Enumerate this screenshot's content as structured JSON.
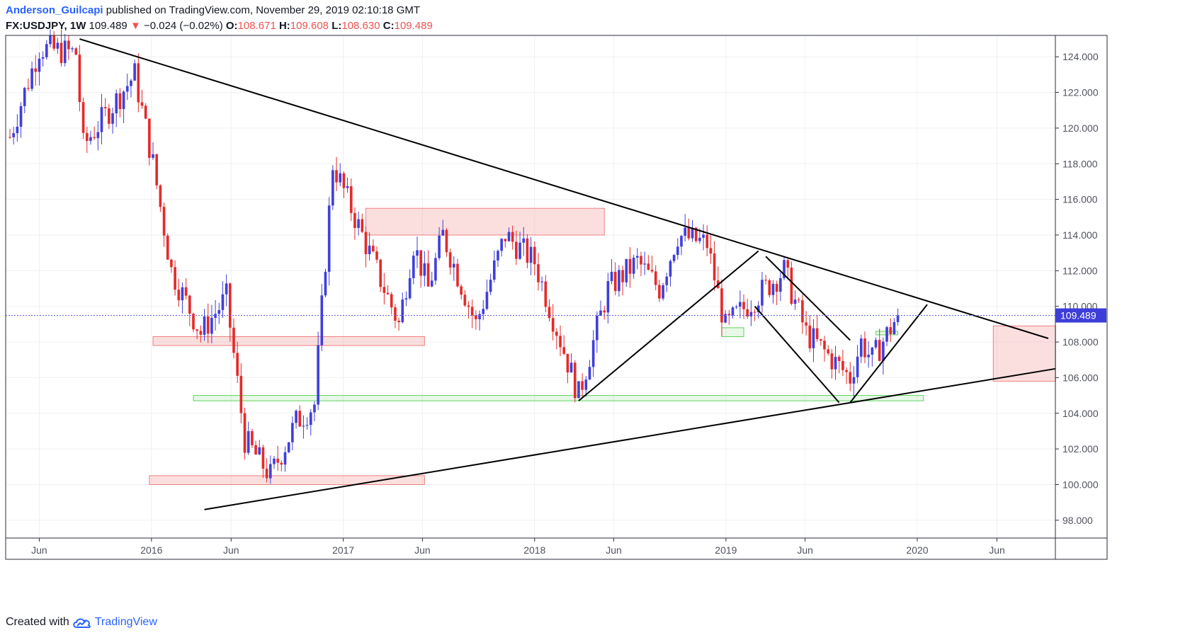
{
  "header": {
    "author": "Anderson_Guilcapi",
    "published": " published on TradingView.com, November 29, 2019 02:10:18 GMT",
    "symbol": "FX:USDJPY, 1W",
    "last": "109.489",
    "down_arrow": "▼",
    "change": "−0.024 (−0.02%)",
    "o_label": "O:",
    "o_value": "108.671",
    "h_label": "H:",
    "h_value": "109.608",
    "l_label": "L:",
    "l_value": "108.630",
    "c_label": "C:",
    "c_value": "109.489"
  },
  "footer": {
    "created_with": "Created with",
    "brand": "TradingView",
    "logo_icon": "tradingview-cloud-icon"
  },
  "colors": {
    "up": "#3f3fdb",
    "down": "#e52a2a",
    "trendline": "#000000",
    "resistance_zone": "#f08080",
    "support_zone": "#5fd35f",
    "price_line": "#5c5ce0",
    "price_badge": "#3d3dd9"
  },
  "chart_data": {
    "type": "candlestick",
    "symbol": "FX:USDJPY",
    "interval": "1W",
    "ylim": [
      97.0,
      125.2
    ],
    "y_ticks": [
      "98.000",
      "100.000",
      "102.000",
      "104.000",
      "106.000",
      "108.000",
      "110.000",
      "112.000",
      "114.000",
      "116.000",
      "118.000",
      "120.000",
      "122.000",
      "124.000"
    ],
    "y_tick_values": [
      98,
      100,
      102,
      104,
      106,
      108,
      110,
      112,
      114,
      116,
      118,
      120,
      122,
      124
    ],
    "x_ticks": [
      {
        "label": "Jun",
        "date": "2015-06-01"
      },
      {
        "label": "2016",
        "date": "2016-01-01"
      },
      {
        "label": "Jun",
        "date": "2016-06-01"
      },
      {
        "label": "2017",
        "date": "2017-01-01"
      },
      {
        "label": "Jun",
        "date": "2017-06-01"
      },
      {
        "label": "2018",
        "date": "2018-01-01"
      },
      {
        "label": "Jun",
        "date": "2018-06-01"
      },
      {
        "label": "2019",
        "date": "2019-01-01"
      },
      {
        "label": "Jun",
        "date": "2019-06-01"
      },
      {
        "label": "2020",
        "date": "2020-01-01"
      },
      {
        "label": "Jun",
        "date": "2020-06-01"
      }
    ],
    "current_price": 109.489,
    "current_price_label": "109.489",
    "waypoints": [
      [
        "2015-04-06",
        119.5
      ],
      [
        "2015-06-01",
        124.5
      ],
      [
        "2015-08-10",
        124.2
      ],
      [
        "2015-08-24",
        119.0
      ],
      [
        "2015-11-30",
        123.0
      ],
      [
        "2016-01-04",
        118.0
      ],
      [
        "2016-02-08",
        112.0
      ],
      [
        "2016-04-04",
        108.5
      ],
      [
        "2016-05-23",
        110.5
      ],
      [
        "2016-06-27",
        102.5
      ],
      [
        "2016-08-15",
        100.5
      ],
      [
        "2016-10-03",
        103.5
      ],
      [
        "2016-11-07",
        104.5
      ],
      [
        "2016-12-12",
        118.0
      ],
      [
        "2017-01-09",
        116.0
      ],
      [
        "2017-04-17",
        109.0
      ],
      [
        "2017-05-15",
        113.5
      ],
      [
        "2017-06-12",
        111.0
      ],
      [
        "2017-07-10",
        114.0
      ],
      [
        "2017-09-11",
        109.0
      ],
      [
        "2017-11-06",
        114.0
      ],
      [
        "2018-01-01",
        112.5
      ],
      [
        "2018-03-26",
        105.0
      ],
      [
        "2018-05-21",
        111.0
      ],
      [
        "2018-07-16",
        112.5
      ],
      [
        "2018-08-27",
        111.0
      ],
      [
        "2018-10-01",
        114.0
      ],
      [
        "2018-11-26",
        113.5
      ],
      [
        "2018-12-31",
        108.8
      ],
      [
        "2019-01-21",
        109.5
      ],
      [
        "2019-04-22",
        112.0
      ],
      [
        "2019-06-03",
        108.5
      ],
      [
        "2019-08-26",
        106.0
      ],
      [
        "2019-09-16",
        108.0
      ],
      [
        "2019-10-07",
        107.0
      ],
      [
        "2019-11-25",
        109.489
      ]
    ],
    "zones": [
      {
        "kind": "resistance",
        "from": "2017-02-13",
        "to": "2018-05-14",
        "low": 114.0,
        "high": 115.5
      },
      {
        "kind": "resistance",
        "from": "2016-01-04",
        "to": "2017-06-05",
        "low": 107.8,
        "high": 108.3
      },
      {
        "kind": "resistance",
        "from": "2015-12-28",
        "to": "2017-06-05",
        "low": 100.0,
        "high": 100.5
      },
      {
        "kind": "resistance",
        "from": "2020-05-25",
        "to": "2020-09-21",
        "low": 105.8,
        "high": 108.9
      },
      {
        "kind": "support",
        "from": "2016-03-21",
        "to": "2020-01-13",
        "low": 104.7,
        "high": 105.0
      },
      {
        "kind": "support",
        "from": "2018-12-24",
        "to": "2019-02-04",
        "low": 108.3,
        "high": 108.8
      },
      {
        "kind": "support",
        "from": "2019-10-14",
        "to": "2019-11-25",
        "low": 108.4,
        "high": 108.6
      }
    ],
    "trendlines": [
      {
        "from": [
          "2015-08-17",
          125.0
        ],
        "to": [
          "2020-09-07",
          108.2
        ]
      },
      {
        "from": [
          "2016-04-11",
          98.6
        ],
        "to": [
          "2020-09-21",
          106.5
        ]
      },
      {
        "from": [
          "2018-03-26",
          104.7
        ],
        "to": [
          "2019-03-04",
          113.1
        ]
      },
      {
        "from": [
          "2019-03-18",
          112.8
        ],
        "to": [
          "2019-08-26",
          108.1
        ]
      },
      {
        "from": [
          "2019-02-25",
          110.0
        ],
        "to": [
          "2019-08-05",
          104.6
        ]
      },
      {
        "from": [
          "2019-08-26",
          104.6
        ],
        "to": [
          "2020-01-20",
          110.1
        ]
      }
    ]
  }
}
